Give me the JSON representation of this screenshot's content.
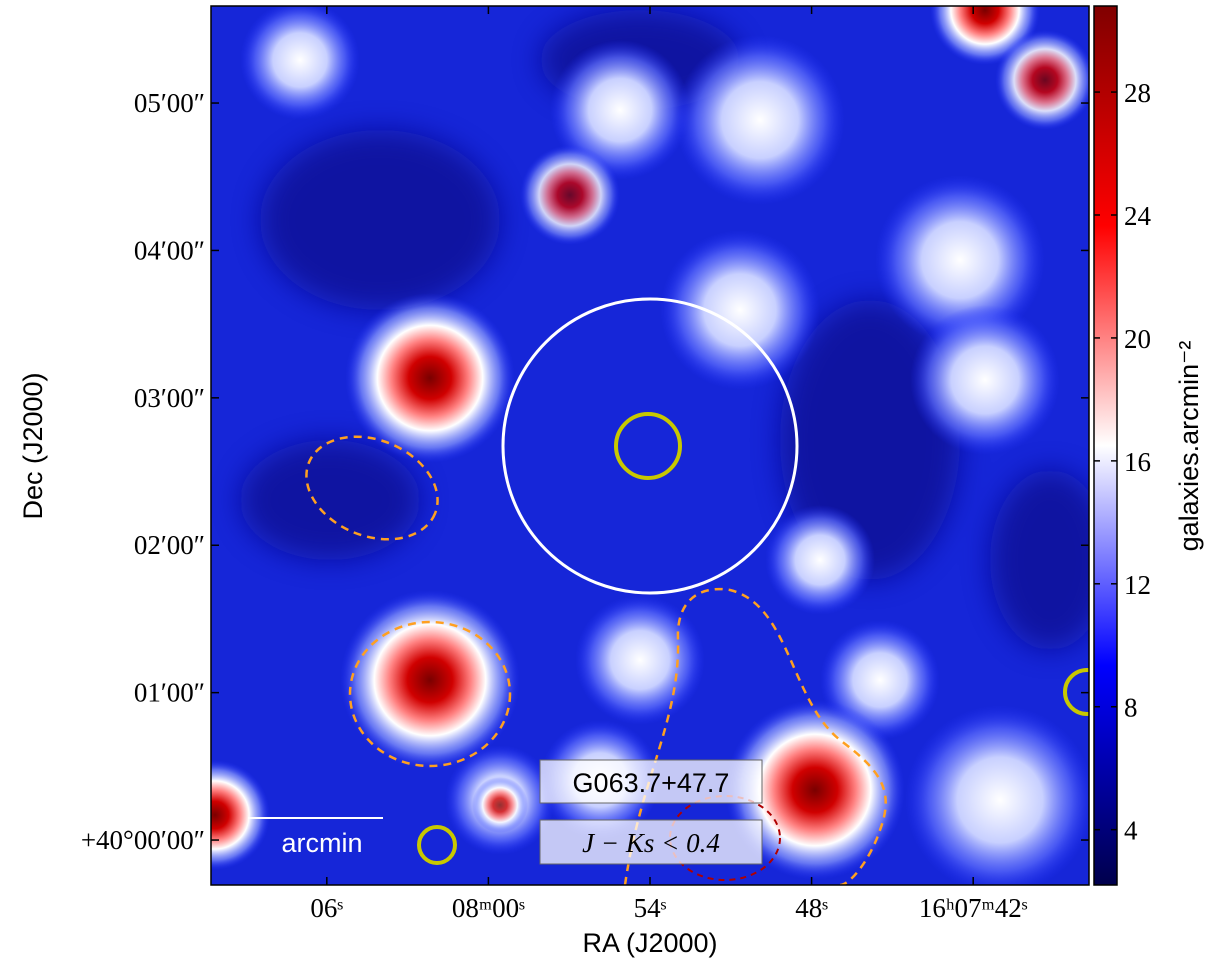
{
  "chart_data": {
    "type": "heatmap",
    "xlabel": "RA (J2000)",
    "ylabel": "Dec (J2000)",
    "xlim": [
      490.3,
      457.7
    ],
    "xticks": [
      {
        "value": 486,
        "label": "06ˢ"
      },
      {
        "value": 480,
        "label": "08ᵐ00ˢ"
      },
      {
        "value": 474,
        "label": "54ˢ"
      },
      {
        "value": 468,
        "label": "48ˢ"
      },
      {
        "value": 462,
        "label": "16ʰ07ᵐ42ˢ"
      }
    ],
    "ylim": [
      -18.3,
      339.5
    ],
    "yticks": [
      {
        "value": 0,
        "label": "+40°00′00″"
      },
      {
        "value": 60,
        "label": "01′00″"
      },
      {
        "value": 120,
        "label": "02′00″"
      },
      {
        "value": 180,
        "label": "03′00″"
      },
      {
        "value": 240,
        "label": "04′00″"
      },
      {
        "value": 300,
        "label": "05′00″"
      }
    ],
    "colorbar": {
      "label": "galaxies.arcmin⁻²",
      "clim": [
        2.2,
        30.8
      ],
      "ticks": [
        4,
        8,
        12,
        16,
        20,
        24,
        28
      ],
      "colormap": [
        "#00004c",
        "#0000ff",
        "#ffffff",
        "#ff0000",
        "#800000"
      ]
    },
    "annotations": {
      "name": "G063.7+47.7",
      "cut": "J − Ks < 0.4",
      "scale_bar": "arcmin"
    }
  }
}
